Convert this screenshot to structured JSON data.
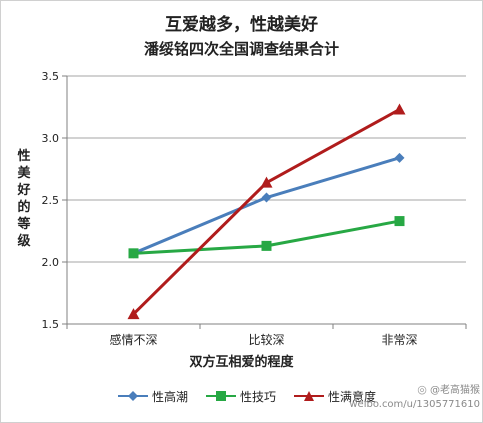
{
  "chart_data": {
    "type": "line",
    "title": "互爱越多，性越美好",
    "subtitle": "潘绥铭四次全国调查结果合计",
    "xlabel": "双方互相爱的程度",
    "ylabel": "性美好的等级",
    "categories": [
      "感情不深",
      "比较深",
      "非常深"
    ],
    "ylim": [
      1.5,
      3.5
    ],
    "yticks": [
      "1.5",
      "2.0",
      "2.5",
      "3.0",
      "3.5"
    ],
    "grid": true,
    "legend_position": "bottom",
    "series": [
      {
        "name": "性高潮",
        "values": [
          2.07,
          2.52,
          2.84
        ],
        "color": "#4a7ebb",
        "marker": "diamond"
      },
      {
        "name": "性技巧",
        "values": [
          2.07,
          2.13,
          2.33
        ],
        "color": "#27a844",
        "marker": "square"
      },
      {
        "name": "性满意度",
        "values": [
          1.58,
          2.64,
          3.23
        ],
        "color": "#b01c1c",
        "marker": "triangle"
      }
    ]
  },
  "watermark": {
    "handle": "@老高猫猴",
    "url": "weibo.com/u/1305771610"
  }
}
